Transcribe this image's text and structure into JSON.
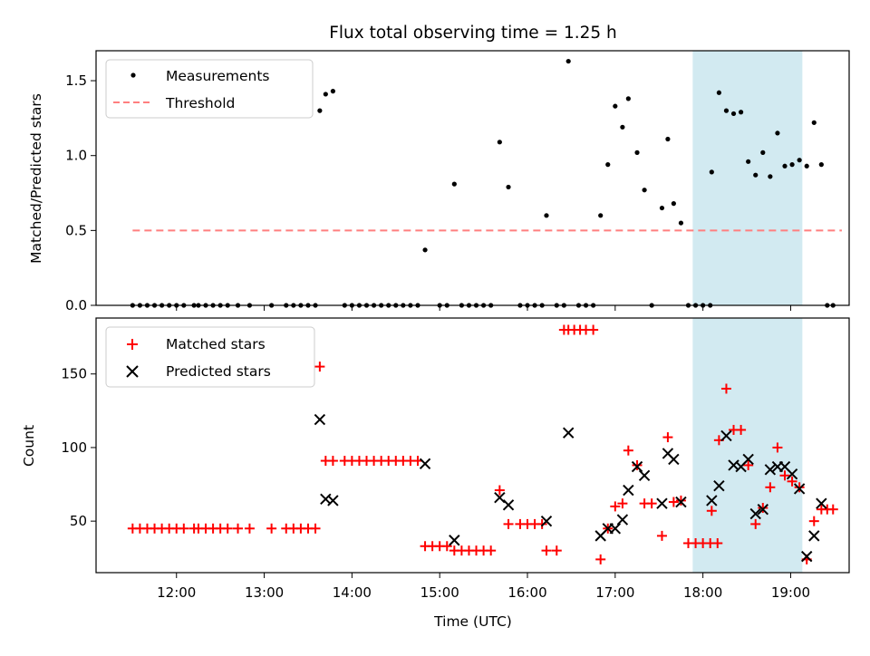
{
  "chart_data": [
    {
      "type": "scatter",
      "title": "Flux total observing time = 1.25 h",
      "ylabel": "Matched/Predicted stars",
      "xlabel": "",
      "ylim": [
        0,
        1.7
      ],
      "yticks": [
        0.0,
        0.5,
        1.0,
        1.5
      ],
      "ytick_labels": [
        "0.0",
        "0.5",
        "1.0",
        "1.5"
      ],
      "xlim": [
        "11:05",
        "19:40"
      ],
      "highlight": {
        "start": "17:53",
        "end": "19:08",
        "color": "#add8e6"
      },
      "legend_position": "top-left",
      "series": [
        {
          "name": "Measurements",
          "marker": "dot",
          "color": "#000000",
          "points": [
            [
              "11:30",
              0
            ],
            [
              "11:35",
              0
            ],
            [
              "11:40",
              0
            ],
            [
              "11:45",
              0
            ],
            [
              "11:50",
              0
            ],
            [
              "11:55",
              0
            ],
            [
              "12:00",
              0
            ],
            [
              "12:05",
              0
            ],
            [
              "12:12",
              0
            ],
            [
              "12:15",
              0
            ],
            [
              "12:20",
              0
            ],
            [
              "12:25",
              0
            ],
            [
              "12:30",
              0
            ],
            [
              "12:35",
              0
            ],
            [
              "12:42",
              0
            ],
            [
              "12:50",
              0
            ],
            [
              "13:05",
              0
            ],
            [
              "13:15",
              0
            ],
            [
              "13:20",
              0
            ],
            [
              "13:25",
              0
            ],
            [
              "13:30",
              0
            ],
            [
              "13:35",
              0
            ],
            [
              "13:38",
              1.3
            ],
            [
              "13:42",
              1.41
            ],
            [
              "13:47",
              1.43
            ],
            [
              "13:55",
              0
            ],
            [
              "14:00",
              0
            ],
            [
              "14:05",
              0
            ],
            [
              "14:10",
              0
            ],
            [
              "14:15",
              0
            ],
            [
              "14:20",
              0
            ],
            [
              "14:25",
              0
            ],
            [
              "14:30",
              0
            ],
            [
              "14:35",
              0
            ],
            [
              "14:40",
              0
            ],
            [
              "14:45",
              0
            ],
            [
              "14:50",
              0.37
            ],
            [
              "15:00",
              0
            ],
            [
              "15:05",
              0
            ],
            [
              "15:10",
              0.81
            ],
            [
              "15:15",
              0
            ],
            [
              "15:20",
              0
            ],
            [
              "15:25",
              0
            ],
            [
              "15:30",
              0
            ],
            [
              "15:35",
              0
            ],
            [
              "15:41",
              1.09
            ],
            [
              "15:47",
              0.79
            ],
            [
              "15:55",
              0
            ],
            [
              "16:00",
              0
            ],
            [
              "16:05",
              0
            ],
            [
              "16:10",
              0
            ],
            [
              "16:13",
              0.6
            ],
            [
              "16:20",
              0
            ],
            [
              "16:25",
              0
            ],
            [
              "16:28",
              1.63
            ],
            [
              "16:35",
              0
            ],
            [
              "16:40",
              0
            ],
            [
              "16:45",
              0
            ],
            [
              "16:50",
              0.6
            ],
            [
              "16:55",
              0.94
            ],
            [
              "17:00",
              1.33
            ],
            [
              "17:05",
              1.19
            ],
            [
              "17:09",
              1.38
            ],
            [
              "17:15",
              1.02
            ],
            [
              "17:20",
              0.77
            ],
            [
              "17:25",
              0
            ],
            [
              "17:32",
              0.65
            ],
            [
              "17:36",
              1.11
            ],
            [
              "17:40",
              0.68
            ],
            [
              "17:45",
              0.55
            ],
            [
              "17:50",
              0
            ],
            [
              "17:55",
              0
            ],
            [
              "18:00",
              0
            ],
            [
              "18:05",
              0
            ],
            [
              "18:06",
              0.89
            ],
            [
              "18:11",
              1.42
            ],
            [
              "18:16",
              1.3
            ],
            [
              "18:21",
              1.28
            ],
            [
              "18:26",
              1.29
            ],
            [
              "18:31",
              0.96
            ],
            [
              "18:36",
              0.87
            ],
            [
              "18:41",
              1.02
            ],
            [
              "18:46",
              0.86
            ],
            [
              "18:51",
              1.15
            ],
            [
              "18:56",
              0.93
            ],
            [
              "19:01",
              0.94
            ],
            [
              "19:06",
              0.97
            ],
            [
              "19:11",
              0.93
            ],
            [
              "19:16",
              1.22
            ],
            [
              "19:21",
              0.94
            ],
            [
              "19:25",
              0
            ],
            [
              "19:29",
              0
            ]
          ]
        },
        {
          "name": "Threshold",
          "marker": "dashed-line",
          "color": "#ff7f7f",
          "points": [
            [
              "11:30",
              0.5
            ],
            [
              "19:35",
              0.5
            ]
          ]
        }
      ]
    },
    {
      "type": "scatter",
      "title": "",
      "ylabel": "Count",
      "xlabel": "Time (UTC)",
      "ylim": [
        15,
        188
      ],
      "yticks": [
        50,
        100,
        150
      ],
      "ytick_labels": [
        "50",
        "100",
        "150"
      ],
      "xlim": [
        "11:05",
        "19:40"
      ],
      "xticks": [
        "12:00",
        "13:00",
        "14:00",
        "15:00",
        "16:00",
        "17:00",
        "18:00",
        "19:00"
      ],
      "highlight": {
        "start": "17:53",
        "end": "19:08",
        "color": "#add8e6"
      },
      "legend_position": "top-left",
      "series": [
        {
          "name": "Matched stars",
          "marker": "plus",
          "color": "#ff0000",
          "points": [
            [
              "11:30",
              45
            ],
            [
              "11:35",
              45
            ],
            [
              "11:40",
              45
            ],
            [
              "11:45",
              45
            ],
            [
              "11:50",
              45
            ],
            [
              "11:55",
              45
            ],
            [
              "12:00",
              45
            ],
            [
              "12:05",
              45
            ],
            [
              "12:12",
              45
            ],
            [
              "12:15",
              45
            ],
            [
              "12:20",
              45
            ],
            [
              "12:25",
              45
            ],
            [
              "12:30",
              45
            ],
            [
              "12:35",
              45
            ],
            [
              "12:42",
              45
            ],
            [
              "12:50",
              45
            ],
            [
              "13:05",
              45
            ],
            [
              "13:15",
              45
            ],
            [
              "13:20",
              45
            ],
            [
              "13:25",
              45
            ],
            [
              "13:30",
              45
            ],
            [
              "13:35",
              45
            ],
            [
              "13:38",
              155
            ],
            [
              "13:42",
              91
            ],
            [
              "13:47",
              91
            ],
            [
              "13:55",
              91
            ],
            [
              "14:00",
              91
            ],
            [
              "14:05",
              91
            ],
            [
              "14:10",
              91
            ],
            [
              "14:15",
              91
            ],
            [
              "14:20",
              91
            ],
            [
              "14:25",
              91
            ],
            [
              "14:30",
              91
            ],
            [
              "14:35",
              91
            ],
            [
              "14:40",
              91
            ],
            [
              "14:45",
              91
            ],
            [
              "14:50",
              33
            ],
            [
              "14:55",
              33
            ],
            [
              "15:00",
              33
            ],
            [
              "15:05",
              33
            ],
            [
              "15:10",
              30
            ],
            [
              "15:15",
              30
            ],
            [
              "15:20",
              30
            ],
            [
              "15:25",
              30
            ],
            [
              "15:30",
              30
            ],
            [
              "15:35",
              30
            ],
            [
              "15:41",
              71
            ],
            [
              "15:47",
              48
            ],
            [
              "15:55",
              48
            ],
            [
              "16:00",
              48
            ],
            [
              "16:05",
              48
            ],
            [
              "16:10",
              48
            ],
            [
              "16:13",
              30
            ],
            [
              "16:20",
              30
            ],
            [
              "16:25",
              180
            ],
            [
              "16:28",
              180
            ],
            [
              "16:32",
              180
            ],
            [
              "16:36",
              180
            ],
            [
              "16:40",
              180
            ],
            [
              "16:45",
              180
            ],
            [
              "16:50",
              24
            ],
            [
              "16:55",
              45
            ],
            [
              "17:00",
              60
            ],
            [
              "17:05",
              62
            ],
            [
              "17:09",
              98
            ],
            [
              "17:15",
              88
            ],
            [
              "17:20",
              62
            ],
            [
              "17:25",
              62
            ],
            [
              "17:32",
              40
            ],
            [
              "17:36",
              107
            ],
            [
              "17:40",
              63
            ],
            [
              "17:45",
              64
            ],
            [
              "17:50",
              35
            ],
            [
              "17:55",
              35
            ],
            [
              "18:00",
              35
            ],
            [
              "18:05",
              35
            ],
            [
              "18:10",
              35
            ],
            [
              "18:06",
              57
            ],
            [
              "18:11",
              105
            ],
            [
              "18:16",
              140
            ],
            [
              "18:21",
              112
            ],
            [
              "18:26",
              112
            ],
            [
              "18:31",
              88
            ],
            [
              "18:36",
              48
            ],
            [
              "18:41",
              59
            ],
            [
              "18:46",
              73
            ],
            [
              "18:51",
              100
            ],
            [
              "18:56",
              81
            ],
            [
              "19:01",
              77
            ],
            [
              "19:06",
              73
            ],
            [
              "19:11",
              24
            ],
            [
              "19:16",
              50
            ],
            [
              "19:21",
              58
            ],
            [
              "19:25",
              58
            ],
            [
              "19:29",
              58
            ]
          ]
        },
        {
          "name": "Predicted stars",
          "marker": "cross",
          "color": "#000000",
          "points": [
            [
              "13:38",
              119
            ],
            [
              "13:42",
              65
            ],
            [
              "13:47",
              64
            ],
            [
              "14:50",
              89
            ],
            [
              "15:10",
              37
            ],
            [
              "15:41",
              66
            ],
            [
              "15:47",
              61
            ],
            [
              "16:13",
              50
            ],
            [
              "16:28",
              110
            ],
            [
              "16:50",
              40
            ],
            [
              "16:55",
              45
            ],
            [
              "17:00",
              45
            ],
            [
              "17:05",
              51
            ],
            [
              "17:09",
              71
            ],
            [
              "17:15",
              87
            ],
            [
              "17:20",
              81
            ],
            [
              "17:32",
              62
            ],
            [
              "17:36",
              96
            ],
            [
              "17:40",
              92
            ],
            [
              "17:45",
              63
            ],
            [
              "18:06",
              64
            ],
            [
              "18:11",
              74
            ],
            [
              "18:16",
              108
            ],
            [
              "18:21",
              88
            ],
            [
              "18:26",
              87
            ],
            [
              "18:31",
              92
            ],
            [
              "18:36",
              55
            ],
            [
              "18:41",
              58
            ],
            [
              "18:46",
              85
            ],
            [
              "18:51",
              87
            ],
            [
              "18:56",
              87
            ],
            [
              "19:01",
              82
            ],
            [
              "19:06",
              72
            ],
            [
              "19:11",
              26
            ],
            [
              "19:16",
              40
            ],
            [
              "19:21",
              62
            ]
          ]
        }
      ]
    }
  ]
}
